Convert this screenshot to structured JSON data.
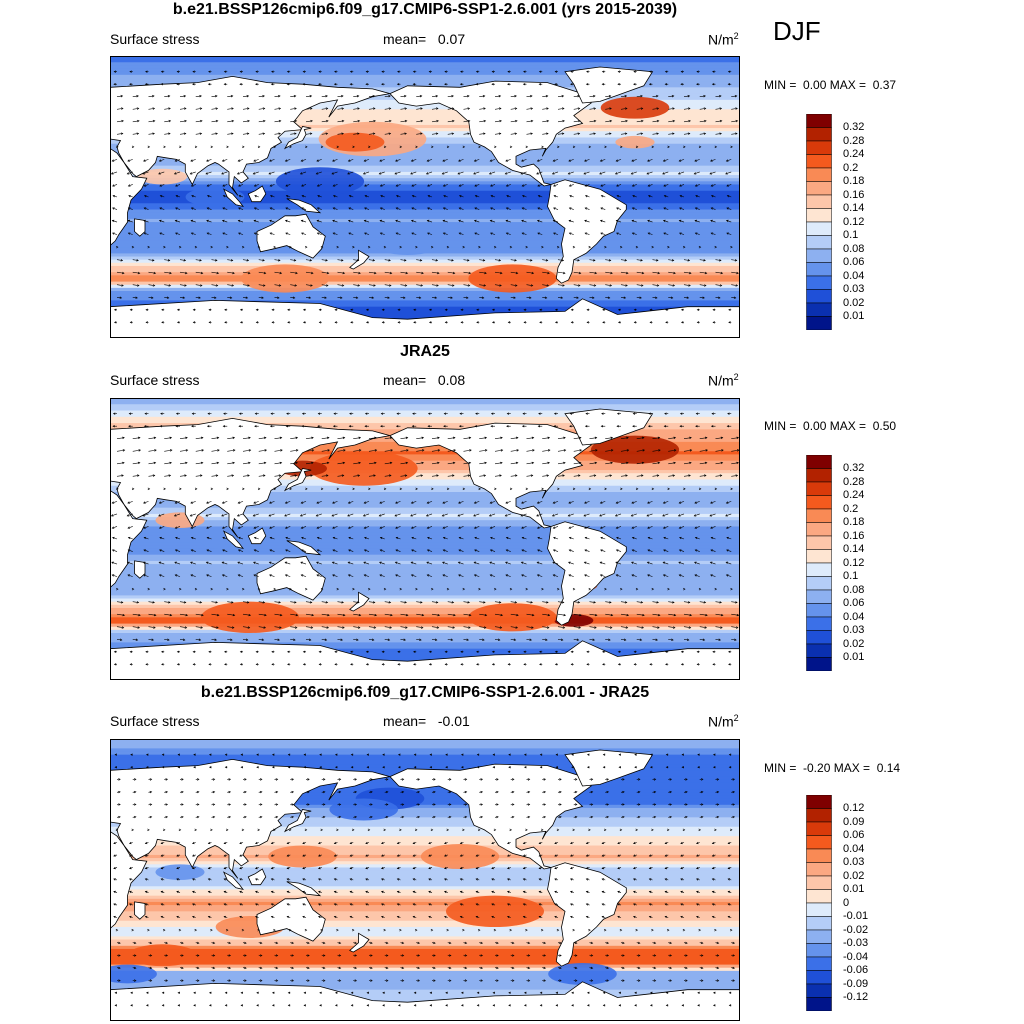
{
  "season": "DJF",
  "panels": [
    {
      "title": "b.e21.BSSP126cmip6.f09_g17.CMIP6-SSP1-2.6.001 (yrs 2015-2039)",
      "left_label": "Surface stress",
      "mean_label": "mean=",
      "mean_value": "0.07",
      "units": "N/m",
      "units_exp": "2",
      "min_label": "MIN =",
      "min_value": "0.00",
      "max_label": "MAX =",
      "max_value": "0.37",
      "colorbar_ticks": [
        "0.32",
        "0.28",
        "0.24",
        "0.2",
        "0.18",
        "0.16",
        "0.14",
        "0.12",
        "0.1",
        "0.08",
        "0.06",
        "0.04",
        "0.03",
        "0.02",
        "0.01"
      ]
    },
    {
      "title": "JRA25",
      "left_label": "Surface stress",
      "mean_label": "mean=",
      "mean_value": "0.08",
      "units": "N/m",
      "units_exp": "2",
      "min_label": "MIN =",
      "min_value": "0.00",
      "max_label": "MAX =",
      "max_value": "0.50",
      "colorbar_ticks": [
        "0.32",
        "0.28",
        "0.24",
        "0.2",
        "0.18",
        "0.16",
        "0.14",
        "0.12",
        "0.1",
        "0.08",
        "0.06",
        "0.04",
        "0.03",
        "0.02",
        "0.01"
      ]
    },
    {
      "title": "b.e21.BSSP126cmip6.f09_g17.CMIP6-SSP1-2.6.001 - JRA25",
      "left_label": "Surface stress",
      "mean_label": "mean=",
      "mean_value": "-0.01",
      "units": "N/m",
      "units_exp": "2",
      "min_label": "MIN =",
      "min_value": "-0.20",
      "max_label": "MAX =",
      "max_value": "0.14",
      "colorbar_ticks": [
        "0.12",
        "0.09",
        "0.06",
        "0.04",
        "0.03",
        "0.02",
        "0.01",
        "0",
        "-0.01",
        "-0.02",
        "-0.03",
        "-0.04",
        "-0.06",
        "-0.09",
        "-0.12"
      ]
    }
  ],
  "palette_16": [
    "#7f0000",
    "#b22200",
    "#d93a0a",
    "#f45a1e",
    "#f98a55",
    "#fba882",
    "#fdc6aa",
    "#fee5d2",
    "#deebfb",
    "#b4cdf7",
    "#8db0f0",
    "#6593ec",
    "#3b70e8",
    "#1f50d8",
    "#0a30b0",
    "#00148a"
  ],
  "chart_data": [
    {
      "type": "heatmap",
      "title": "b.e21.BSSP126cmip6.f09_g17.CMIP6-SSP1-2.6.001 (yrs 2015-2039)",
      "variable": "Surface stress",
      "units": "N/m2",
      "mean": 0.07,
      "min": 0.0,
      "max": 0.37,
      "levels": [
        0.01,
        0.02,
        0.03,
        0.04,
        0.06,
        0.08,
        0.1,
        0.12,
        0.14,
        0.16,
        0.18,
        0.2,
        0.24,
        0.28,
        0.32
      ],
      "zonal_bands": [
        {
          "lat": 90,
          "value": 0.03
        },
        {
          "lat": 70,
          "value": 0.08
        },
        {
          "lat": 55,
          "value": 0.12
        },
        {
          "lat": 45,
          "value": 0.14
        },
        {
          "lat": 35,
          "value": 0.08
        },
        {
          "lat": 25,
          "value": 0.06
        },
        {
          "lat": 15,
          "value": 0.1
        },
        {
          "lat": 8,
          "value": 0.04
        },
        {
          "lat": 0,
          "value": 0.02
        },
        {
          "lat": -8,
          "value": 0.04
        },
        {
          "lat": -15,
          "value": 0.06
        },
        {
          "lat": -25,
          "value": 0.04
        },
        {
          "lat": -35,
          "value": 0.05
        },
        {
          "lat": -45,
          "value": 0.14
        },
        {
          "lat": -52,
          "value": 0.2
        },
        {
          "lat": -60,
          "value": 0.06
        },
        {
          "lat": -70,
          "value": 0.03
        },
        {
          "lat": -90,
          "value": 0.02
        }
      ]
    },
    {
      "type": "heatmap",
      "title": "JRA25",
      "variable": "Surface stress",
      "units": "N/m2",
      "mean": 0.08,
      "min": 0.0,
      "max": 0.5,
      "levels": [
        0.01,
        0.02,
        0.03,
        0.04,
        0.06,
        0.08,
        0.1,
        0.12,
        0.14,
        0.16,
        0.18,
        0.2,
        0.24,
        0.28,
        0.32
      ],
      "zonal_bands": [
        {
          "lat": 90,
          "value": 0.06
        },
        {
          "lat": 70,
          "value": 0.16
        },
        {
          "lat": 55,
          "value": 0.2
        },
        {
          "lat": 45,
          "value": 0.16
        },
        {
          "lat": 35,
          "value": 0.1
        },
        {
          "lat": 25,
          "value": 0.06
        },
        {
          "lat": 15,
          "value": 0.1
        },
        {
          "lat": 8,
          "value": 0.06
        },
        {
          "lat": 0,
          "value": 0.04
        },
        {
          "lat": -8,
          "value": 0.05
        },
        {
          "lat": -15,
          "value": 0.08
        },
        {
          "lat": -25,
          "value": 0.06
        },
        {
          "lat": -35,
          "value": 0.06
        },
        {
          "lat": -45,
          "value": 0.16
        },
        {
          "lat": -52,
          "value": 0.22
        },
        {
          "lat": -60,
          "value": 0.08
        },
        {
          "lat": -70,
          "value": 0.04
        },
        {
          "lat": -90,
          "value": 0.03
        }
      ]
    },
    {
      "type": "heatmap",
      "title": "b.e21.BSSP126cmip6.f09_g17.CMIP6-SSP1-2.6.001 - JRA25",
      "variable": "Surface stress",
      "units": "N/m2",
      "mean": -0.01,
      "min": -0.2,
      "max": 0.14,
      "levels": [
        -0.12,
        -0.09,
        -0.06,
        -0.04,
        -0.03,
        -0.02,
        -0.01,
        0,
        0.01,
        0.02,
        0.03,
        0.04,
        0.06,
        0.09,
        0.12
      ],
      "zonal_bands": [
        {
          "lat": 90,
          "value": -0.02
        },
        {
          "lat": 70,
          "value": -0.06
        },
        {
          "lat": 55,
          "value": -0.06
        },
        {
          "lat": 45,
          "value": -0.03
        },
        {
          "lat": 35,
          "value": -0.01
        },
        {
          "lat": 25,
          "value": 0.005
        },
        {
          "lat": 15,
          "value": 0.02
        },
        {
          "lat": 8,
          "value": -0.01
        },
        {
          "lat": 0,
          "value": -0.02
        },
        {
          "lat": -8,
          "value": 0.005
        },
        {
          "lat": -15,
          "value": 0.03
        },
        {
          "lat": -25,
          "value": 0.01
        },
        {
          "lat": -35,
          "value": -0.01
        },
        {
          "lat": -45,
          "value": 0.04
        },
        {
          "lat": -52,
          "value": 0.05
        },
        {
          "lat": -60,
          "value": -0.03
        },
        {
          "lat": -70,
          "value": -0.02
        },
        {
          "lat": -90,
          "value": -0.01
        }
      ]
    }
  ]
}
